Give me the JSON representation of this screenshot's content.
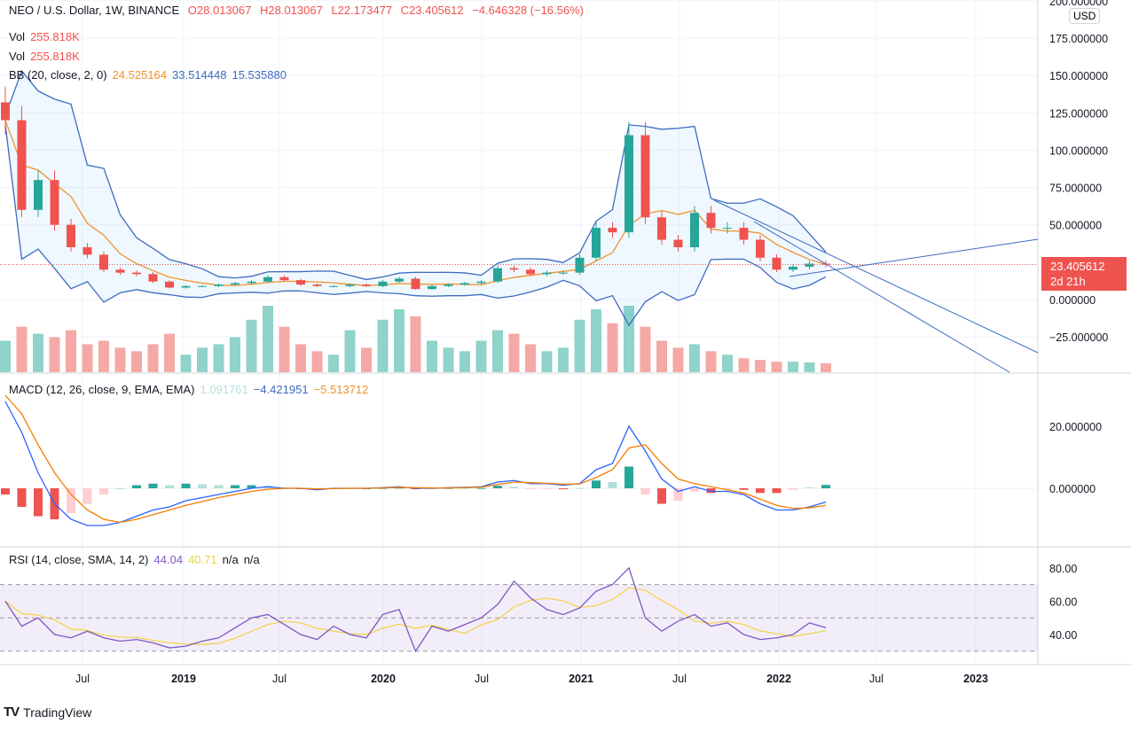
{
  "header": {
    "symbol": "NEO / U.S. Dollar, 1W, BINANCE",
    "open": "O28.013067",
    "high": "H28.013067",
    "low": "L22.173477",
    "close": "C23.405612",
    "change": "−4.646328 (−16.56%)"
  },
  "vol_legend": [
    {
      "label": "Vol",
      "value": "255.818K"
    },
    {
      "label": "Vol",
      "value": "255.818K"
    }
  ],
  "bb_legend": {
    "label": "BB (20, close, 2, 0)",
    "basis": "24.525164",
    "upper": "33.514448",
    "lower": "15.535880"
  },
  "macd_legend": {
    "label": "MACD (12, 26, close, 9, EMA, EMA)",
    "hist": "1.091761",
    "macd": "−4.421951",
    "signal": "−5.513712"
  },
  "rsi_legend": {
    "label": "RSI (14, close, SMA, 14, 2)",
    "rsi": "44.04",
    "ma": "40.71",
    "na1": "n/a",
    "na2": "n/a"
  },
  "price_axis": {
    "currency": "USD",
    "ticks": [
      "200.000000",
      "175.000000",
      "150.000000",
      "125.000000",
      "100.000000",
      "75.000000",
      "50.000000",
      "0.000000",
      "−25.000000"
    ],
    "last_price": "23.405612",
    "countdown": "2d 21h"
  },
  "macd_axis": {
    "ticks": [
      "20.000000",
      "0.000000"
    ]
  },
  "rsi_axis": {
    "ticks": [
      "80.00",
      "60.00",
      "40.00"
    ]
  },
  "time_axis": {
    "ticks": [
      "Jul",
      "2019",
      "Jul",
      "2020",
      "Jul",
      "2021",
      "Jul",
      "2022",
      "Jul",
      "2023"
    ]
  },
  "brand": "TradingView",
  "colors": {
    "up": "#26a69a",
    "down": "#ef5350",
    "bb": "#3d6bbf",
    "basis": "#f0932b",
    "macd": "#2962ff",
    "signal": "#f57c00",
    "rsi": "#7e57c2",
    "rsi_ma": "#f5d142"
  },
  "chart_data": {
    "type": "candlestick",
    "period_start": "2018-02",
    "period_end": "2022-04",
    "close": [
      120,
      60,
      80,
      50,
      35,
      30,
      20,
      18,
      17,
      12,
      8,
      9,
      9,
      10,
      11,
      12,
      15,
      13,
      10,
      9,
      9,
      10,
      9,
      12,
      14,
      7,
      9,
      10,
      11,
      12,
      21,
      20,
      17,
      18,
      18,
      28,
      48,
      45,
      110,
      55,
      40,
      35,
      58,
      48,
      48,
      40,
      28,
      20,
      22,
      24,
      23.4
    ],
    "volume_k": [
      900,
      1300,
      1100,
      1000,
      1200,
      800,
      900,
      700,
      600,
      800,
      1100,
      500,
      700,
      800,
      1000,
      1500,
      1900,
      1300,
      800,
      600,
      500,
      1200,
      700,
      1500,
      1800,
      1600,
      900,
      700,
      600,
      900,
      1200,
      1100,
      800,
      600,
      700,
      1500,
      1800,
      1400,
      1900,
      1300,
      900,
      700,
      800,
      600,
      500,
      400,
      350,
      300,
      300,
      280,
      255.818
    ],
    "macd": [
      28,
      18,
      5,
      -5,
      -10,
      -12,
      -12,
      -11,
      -9,
      -7,
      -6,
      -4,
      -3,
      -2,
      -1,
      0,
      0.5,
      0,
      0,
      -0.5,
      0,
      0,
      0,
      0.2,
      0.5,
      0,
      0,
      0.2,
      0.3,
      0.5,
      2,
      2.5,
      1.5,
      1.5,
      1,
      1.5,
      6,
      8,
      20,
      12,
      3,
      -1,
      0.5,
      -1,
      -1,
      -2,
      -5,
      -7,
      -7,
      -6,
      -4.42
    ],
    "signal": [
      30,
      24,
      14,
      5,
      -2,
      -7,
      -10,
      -11,
      -10,
      -8.5,
      -7,
      -5.5,
      -4.3,
      -3,
      -2,
      -1,
      -0.3,
      0,
      0,
      -0.2,
      -0.1,
      0,
      0,
      0.1,
      0.3,
      0.2,
      0.1,
      0.1,
      0.2,
      0.4,
      1.2,
      2,
      1.8,
      1.6,
      1.3,
      1.4,
      3.5,
      6,
      13,
      14,
      8,
      3,
      1.5,
      0.5,
      -0.5,
      -1.5,
      -3.5,
      -5.5,
      -6.5,
      -6.3,
      -5.51
    ],
    "rsi": [
      60,
      45,
      50,
      40,
      38,
      42,
      38,
      36,
      37,
      35,
      32,
      33,
      36,
      38,
      44,
      50,
      52,
      46,
      40,
      37,
      45,
      40,
      38,
      52,
      55,
      30,
      45,
      42,
      46,
      50,
      58,
      72,
      62,
      55,
      52,
      56,
      66,
      70,
      80,
      50,
      42,
      48,
      52,
      45,
      47,
      40,
      37,
      38,
      40,
      47,
      44.04
    ],
    "rsi_bands": [
      30,
      70
    ],
    "ylim": [
      -50,
      200
    ]
  }
}
